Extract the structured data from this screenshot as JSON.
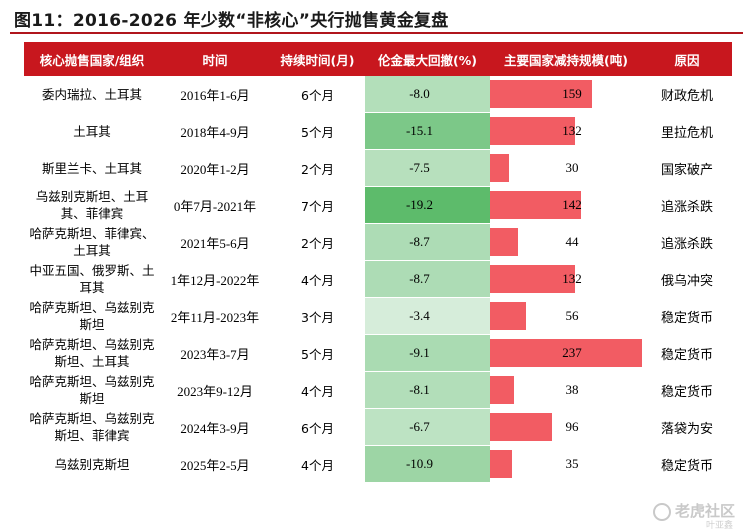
{
  "title": "图11：2016-2026 年少数“非核心”央行抛售黄金复盘",
  "table": {
    "headers": [
      "核心抛售国家/组织",
      "时间",
      "持续时间(月)",
      "伦金最大回撤(%)",
      "主要国家减持规模(吨)",
      "原因"
    ],
    "rows": [
      {
        "country": "委内瑞拉、土耳其",
        "period": "2016年1-6月",
        "duration": "6个月",
        "drawdown": "-8.0",
        "amount": "159",
        "reason": "财政危机"
      },
      {
        "country": "土耳其",
        "period": "2018年4-9月",
        "duration": "5个月",
        "drawdown": "-15.1",
        "amount": "132",
        "reason": "里拉危机"
      },
      {
        "country": "斯里兰卡、土耳其",
        "period": "2020年1-2月",
        "duration": "2个月",
        "drawdown": "-7.5",
        "amount": "30",
        "reason": "国家破产"
      },
      {
        "country": "乌兹别克斯坦、土耳其、菲律宾",
        "period": "0年7月-2021年",
        "duration": "7个月",
        "drawdown": "-19.2",
        "amount": "142",
        "reason": "追涨杀跌"
      },
      {
        "country": "哈萨克斯坦、菲律宾、土耳其",
        "period": "2021年5-6月",
        "duration": "2个月",
        "drawdown": "-8.7",
        "amount": "44",
        "reason": "追涨杀跌"
      },
      {
        "country": "中亚五国、俄罗斯、土耳其",
        "period": "1年12月-2022年",
        "duration": "4个月",
        "drawdown": "-8.7",
        "amount": "132",
        "reason": "俄乌冲突"
      },
      {
        "country": "哈萨克斯坦、乌兹别克斯坦",
        "period": "2年11月-2023年",
        "duration": "3个月",
        "drawdown": "-3.4",
        "amount": "56",
        "reason": "稳定货币"
      },
      {
        "country": "哈萨克斯坦、乌兹别克斯坦、土耳其",
        "period": "2023年3-7月",
        "duration": "5个月",
        "drawdown": "-9.1",
        "amount": "237",
        "reason": "稳定货币"
      },
      {
        "country": "哈萨克斯坦、乌兹别克斯坦",
        "period": "2023年9-12月",
        "duration": "4个月",
        "drawdown": "-8.1",
        "amount": "38",
        "reason": "稳定货币"
      },
      {
        "country": "哈萨克斯坦、乌兹别克斯坦、菲律宾",
        "period": "2024年3-9月",
        "duration": "6个月",
        "drawdown": "-6.7",
        "amount": "96",
        "reason": "落袋为安"
      },
      {
        "country": "乌兹别克斯坦",
        "period": "2025年2-5月",
        "duration": "4个月",
        "drawdown": "-10.9",
        "amount": "35",
        "reason": "稳定货币"
      }
    ]
  },
  "colors": {
    "header_bg": "#c8171e",
    "bar": "#f25c63",
    "drawdown_green_strong": "#5dbb6b",
    "drawdown_green_light": "#eaf6ec"
  },
  "watermark": {
    "main": "老虎社区",
    "sub": "叶亚鑫",
    "icon": "tiger-logo-icon"
  }
}
